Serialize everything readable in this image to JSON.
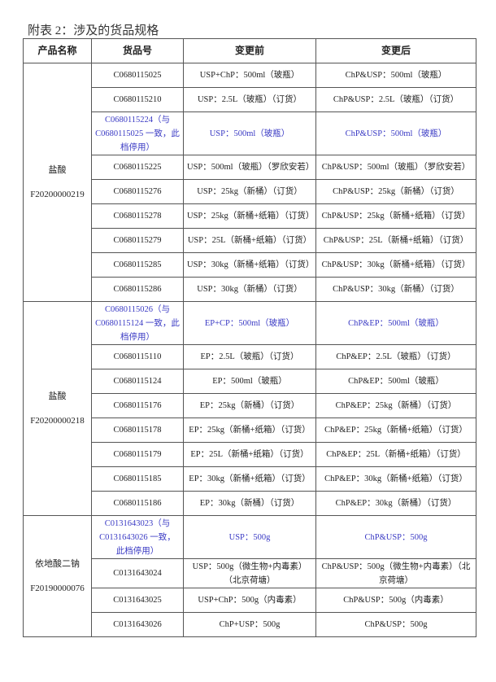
{
  "title": "附表 2：涉及的货品规格",
  "headers": [
    "产品名称",
    "货品号",
    "变更前",
    "变更后"
  ],
  "colors": {
    "highlight": "#3a3ac4",
    "border": "#555555"
  },
  "groups": [
    {
      "name": "盐酸",
      "code": "F20200000219",
      "rows": [
        {
          "id": "C0680115025",
          "before": "USP+ChP：500ml（玻瓶）",
          "after": "ChP&USP：500ml（玻瓶）"
        },
        {
          "id": "C0680115210",
          "before": "USP：2.5L（玻瓶）（订货）",
          "after": "ChP&USP：2.5L（玻瓶）（订货）"
        },
        {
          "id": "C0680115224（与C0680115025 一致，此档停用）",
          "before": "USP：500ml（玻瓶）",
          "after": "ChP&USP：500ml（玻瓶）",
          "highlight": true
        },
        {
          "id": "C0680115225",
          "before": "USP：500ml（玻瓶）（罗欣安若）",
          "after": "ChP&USP：500ml（玻瓶）（罗欣安若）"
        },
        {
          "id": "C0680115276",
          "before": "USP：25kg（新桶）（订货）",
          "after": "ChP&USP：25kg（新桶）（订货）"
        },
        {
          "id": "C0680115278",
          "before": "USP：25kg（新桶+纸箱）（订货）",
          "after": "ChP&USP：25kg（新桶+纸箱）（订货）"
        },
        {
          "id": "C0680115279",
          "before": "USP：25L（新桶+纸箱）（订货）",
          "after": "ChP&USP：25L（新桶+纸箱）（订货）"
        },
        {
          "id": "C0680115285",
          "before": "USP：30kg（新桶+纸箱）（订货）",
          "after": "ChP&USP：30kg（新桶+纸箱）（订货）"
        },
        {
          "id": "C0680115286",
          "before": "USP：30kg（新桶）（订货）",
          "after": "ChP&USP：30kg（新桶）（订货）"
        }
      ]
    },
    {
      "name": "盐酸",
      "code": "F20200000218",
      "rows": [
        {
          "id": "C0680115026（与C0680115124 一致，此档停用）",
          "before": "EP+CP：500ml（玻瓶）",
          "after": "ChP&EP：500ml（玻瓶）",
          "highlight": true
        },
        {
          "id": "C0680115110",
          "before": "EP：2.5L（玻瓶）（订货）",
          "after": "ChP&EP：2.5L（玻瓶）（订货）"
        },
        {
          "id": "C0680115124",
          "before": "EP：500ml（玻瓶）",
          "after": "ChP&EP：500ml（玻瓶）"
        },
        {
          "id": "C0680115176",
          "before": "EP：25kg（新桶）（订货）",
          "after": "ChP&EP：25kg（新桶）（订货）"
        },
        {
          "id": "C0680115178",
          "before": "EP：25kg（新桶+纸箱）（订货）",
          "after": "ChP&EP：25kg（新桶+纸箱）（订货）"
        },
        {
          "id": "C0680115179",
          "before": "EP：25L（新桶+纸箱）（订货）",
          "after": "ChP&EP：25L（新桶+纸箱）（订货）"
        },
        {
          "id": "C0680115185",
          "before": "EP：30kg（新桶+纸箱）（订货）",
          "after": "ChP&EP：30kg（新桶+纸箱）（订货）"
        },
        {
          "id": "C0680115186",
          "before": "EP：30kg（新桶）（订货）",
          "after": "ChP&EP：30kg（新桶）（订货）"
        }
      ]
    },
    {
      "name": "依地酸二钠",
      "code": "F20190000076",
      "rows": [
        {
          "id": "C0131643023（与C0131643026 一致，此档停用）",
          "before": "USP：500g",
          "after": "ChP&USP：500g",
          "highlight": true
        },
        {
          "id": "C0131643024",
          "before": "USP：500g（微生物+内毒素）（北京荷塘）",
          "after": "ChP&USP：500g（微生物+内毒素）（北京荷塘）"
        },
        {
          "id": "C0131643025",
          "before": "USP+ChP：500g（内毒素）",
          "after": "ChP&USP：500g（内毒素）"
        },
        {
          "id": "C0131643026",
          "before": "ChP+USP：500g",
          "after": "ChP&USP：500g"
        }
      ]
    }
  ]
}
